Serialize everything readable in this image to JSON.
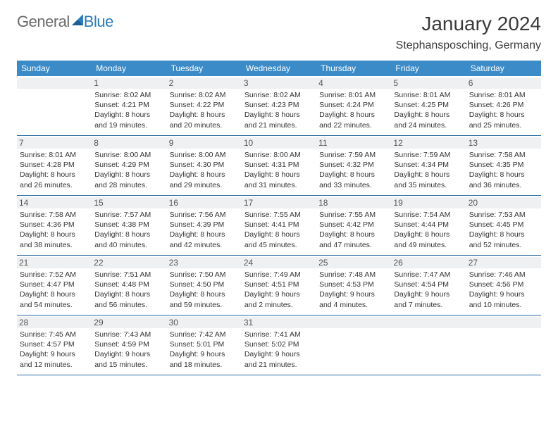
{
  "logo": {
    "text1": "General",
    "text2": "Blue",
    "icon_color": "#2b7bbd"
  },
  "title": "January 2024",
  "location": "Stephansposching, Germany",
  "colors": {
    "header_bg": "#3b8bc8",
    "header_text": "#ffffff",
    "border": "#2a6aa0",
    "daynum_bg": "#eef0f2",
    "text": "#333333",
    "logo_gray": "#6a6a6a",
    "logo_blue": "#2b7bbd"
  },
  "weekdays": [
    "Sunday",
    "Monday",
    "Tuesday",
    "Wednesday",
    "Thursday",
    "Friday",
    "Saturday"
  ],
  "weeks": [
    [
      {
        "num": "",
        "sunrise": "",
        "sunset": "",
        "daylight": ""
      },
      {
        "num": "1",
        "sunrise": "Sunrise: 8:02 AM",
        "sunset": "Sunset: 4:21 PM",
        "daylight": "Daylight: 8 hours and 19 minutes."
      },
      {
        "num": "2",
        "sunrise": "Sunrise: 8:02 AM",
        "sunset": "Sunset: 4:22 PM",
        "daylight": "Daylight: 8 hours and 20 minutes."
      },
      {
        "num": "3",
        "sunrise": "Sunrise: 8:02 AM",
        "sunset": "Sunset: 4:23 PM",
        "daylight": "Daylight: 8 hours and 21 minutes."
      },
      {
        "num": "4",
        "sunrise": "Sunrise: 8:01 AM",
        "sunset": "Sunset: 4:24 PM",
        "daylight": "Daylight: 8 hours and 22 minutes."
      },
      {
        "num": "5",
        "sunrise": "Sunrise: 8:01 AM",
        "sunset": "Sunset: 4:25 PM",
        "daylight": "Daylight: 8 hours and 24 minutes."
      },
      {
        "num": "6",
        "sunrise": "Sunrise: 8:01 AM",
        "sunset": "Sunset: 4:26 PM",
        "daylight": "Daylight: 8 hours and 25 minutes."
      }
    ],
    [
      {
        "num": "7",
        "sunrise": "Sunrise: 8:01 AM",
        "sunset": "Sunset: 4:28 PM",
        "daylight": "Daylight: 8 hours and 26 minutes."
      },
      {
        "num": "8",
        "sunrise": "Sunrise: 8:00 AM",
        "sunset": "Sunset: 4:29 PM",
        "daylight": "Daylight: 8 hours and 28 minutes."
      },
      {
        "num": "9",
        "sunrise": "Sunrise: 8:00 AM",
        "sunset": "Sunset: 4:30 PM",
        "daylight": "Daylight: 8 hours and 29 minutes."
      },
      {
        "num": "10",
        "sunrise": "Sunrise: 8:00 AM",
        "sunset": "Sunset: 4:31 PM",
        "daylight": "Daylight: 8 hours and 31 minutes."
      },
      {
        "num": "11",
        "sunrise": "Sunrise: 7:59 AM",
        "sunset": "Sunset: 4:32 PM",
        "daylight": "Daylight: 8 hours and 33 minutes."
      },
      {
        "num": "12",
        "sunrise": "Sunrise: 7:59 AM",
        "sunset": "Sunset: 4:34 PM",
        "daylight": "Daylight: 8 hours and 35 minutes."
      },
      {
        "num": "13",
        "sunrise": "Sunrise: 7:58 AM",
        "sunset": "Sunset: 4:35 PM",
        "daylight": "Daylight: 8 hours and 36 minutes."
      }
    ],
    [
      {
        "num": "14",
        "sunrise": "Sunrise: 7:58 AM",
        "sunset": "Sunset: 4:36 PM",
        "daylight": "Daylight: 8 hours and 38 minutes."
      },
      {
        "num": "15",
        "sunrise": "Sunrise: 7:57 AM",
        "sunset": "Sunset: 4:38 PM",
        "daylight": "Daylight: 8 hours and 40 minutes."
      },
      {
        "num": "16",
        "sunrise": "Sunrise: 7:56 AM",
        "sunset": "Sunset: 4:39 PM",
        "daylight": "Daylight: 8 hours and 42 minutes."
      },
      {
        "num": "17",
        "sunrise": "Sunrise: 7:55 AM",
        "sunset": "Sunset: 4:41 PM",
        "daylight": "Daylight: 8 hours and 45 minutes."
      },
      {
        "num": "18",
        "sunrise": "Sunrise: 7:55 AM",
        "sunset": "Sunset: 4:42 PM",
        "daylight": "Daylight: 8 hours and 47 minutes."
      },
      {
        "num": "19",
        "sunrise": "Sunrise: 7:54 AM",
        "sunset": "Sunset: 4:44 PM",
        "daylight": "Daylight: 8 hours and 49 minutes."
      },
      {
        "num": "20",
        "sunrise": "Sunrise: 7:53 AM",
        "sunset": "Sunset: 4:45 PM",
        "daylight": "Daylight: 8 hours and 52 minutes."
      }
    ],
    [
      {
        "num": "21",
        "sunrise": "Sunrise: 7:52 AM",
        "sunset": "Sunset: 4:47 PM",
        "daylight": "Daylight: 8 hours and 54 minutes."
      },
      {
        "num": "22",
        "sunrise": "Sunrise: 7:51 AM",
        "sunset": "Sunset: 4:48 PM",
        "daylight": "Daylight: 8 hours and 56 minutes."
      },
      {
        "num": "23",
        "sunrise": "Sunrise: 7:50 AM",
        "sunset": "Sunset: 4:50 PM",
        "daylight": "Daylight: 8 hours and 59 minutes."
      },
      {
        "num": "24",
        "sunrise": "Sunrise: 7:49 AM",
        "sunset": "Sunset: 4:51 PM",
        "daylight": "Daylight: 9 hours and 2 minutes."
      },
      {
        "num": "25",
        "sunrise": "Sunrise: 7:48 AM",
        "sunset": "Sunset: 4:53 PM",
        "daylight": "Daylight: 9 hours and 4 minutes."
      },
      {
        "num": "26",
        "sunrise": "Sunrise: 7:47 AM",
        "sunset": "Sunset: 4:54 PM",
        "daylight": "Daylight: 9 hours and 7 minutes."
      },
      {
        "num": "27",
        "sunrise": "Sunrise: 7:46 AM",
        "sunset": "Sunset: 4:56 PM",
        "daylight": "Daylight: 9 hours and 10 minutes."
      }
    ],
    [
      {
        "num": "28",
        "sunrise": "Sunrise: 7:45 AM",
        "sunset": "Sunset: 4:57 PM",
        "daylight": "Daylight: 9 hours and 12 minutes."
      },
      {
        "num": "29",
        "sunrise": "Sunrise: 7:43 AM",
        "sunset": "Sunset: 4:59 PM",
        "daylight": "Daylight: 9 hours and 15 minutes."
      },
      {
        "num": "30",
        "sunrise": "Sunrise: 7:42 AM",
        "sunset": "Sunset: 5:01 PM",
        "daylight": "Daylight: 9 hours and 18 minutes."
      },
      {
        "num": "31",
        "sunrise": "Sunrise: 7:41 AM",
        "sunset": "Sunset: 5:02 PM",
        "daylight": "Daylight: 9 hours and 21 minutes."
      },
      {
        "num": "",
        "sunrise": "",
        "sunset": "",
        "daylight": ""
      },
      {
        "num": "",
        "sunrise": "",
        "sunset": "",
        "daylight": ""
      },
      {
        "num": "",
        "sunrise": "",
        "sunset": "",
        "daylight": ""
      }
    ]
  ]
}
